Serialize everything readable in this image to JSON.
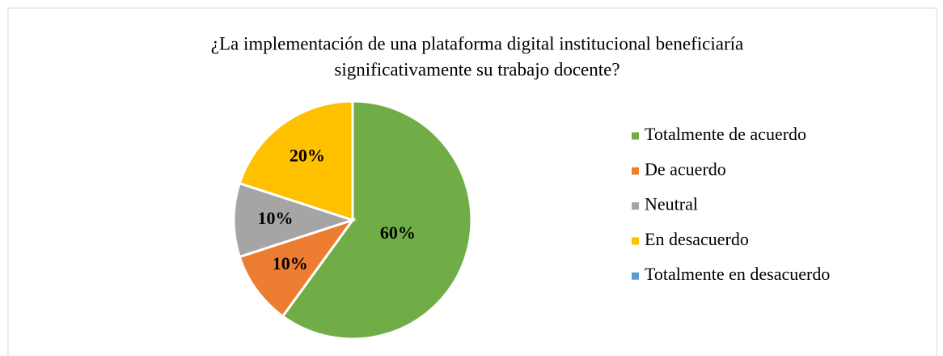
{
  "chart_data": {
    "type": "pie",
    "title": [
      "¿La implementación de una plataforma digital institucional beneficiaría",
      "significativamente su trabajo docente?"
    ],
    "categories": [
      "Totalmente de acuerdo",
      "De acuerdo",
      "Neutral",
      "En desacuerdo",
      "Totalmente en desacuerdo"
    ],
    "values": [
      60,
      10,
      10,
      20,
      0
    ],
    "value_labels": [
      "60%",
      "10%",
      "10%",
      "20%",
      null
    ],
    "colors": [
      "#70ad47",
      "#ed7d31",
      "#a5a5a5",
      "#ffc000",
      "#5b9bd5"
    ],
    "legend": "right"
  }
}
